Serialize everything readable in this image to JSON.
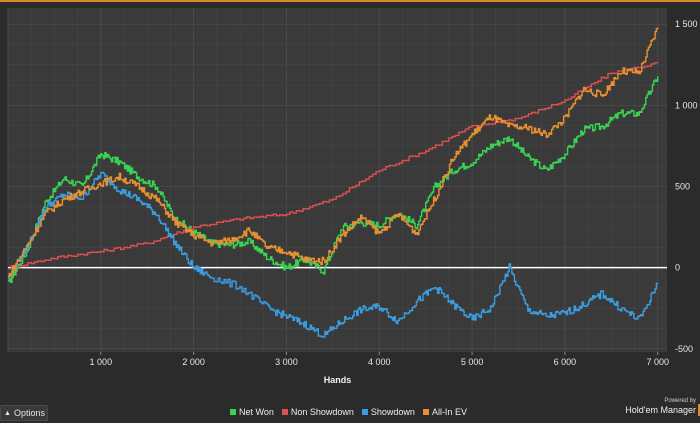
{
  "chart_data": {
    "type": "line",
    "xlabel": "Hands",
    "ylabel": "",
    "xlim": [
      0,
      7100
    ],
    "ylim": [
      -520,
      1600
    ],
    "x_ticks": [
      {
        "value": 1000,
        "label": "1 000"
      },
      {
        "value": 2000,
        "label": "2 000"
      },
      {
        "value": 3000,
        "label": "3 000"
      },
      {
        "value": 4000,
        "label": "4 000"
      },
      {
        "value": 5000,
        "label": "5 000"
      },
      {
        "value": 6000,
        "label": "6 000"
      },
      {
        "value": 7000,
        "label": "7 000"
      }
    ],
    "y_ticks": [
      {
        "value": 1500,
        "label": "1 500"
      },
      {
        "value": 1000,
        "label": "1 000"
      },
      {
        "value": 500,
        "label": "500"
      },
      {
        "value": 0,
        "label": "0"
      },
      {
        "value": -500,
        "label": "-500"
      }
    ],
    "grid": true,
    "legend_position": "bottom",
    "series": [
      {
        "name": "Net Won",
        "color": "#39d353",
        "points": [
          [
            0,
            -100
          ],
          [
            200,
            100
          ],
          [
            400,
            400
          ],
          [
            600,
            550
          ],
          [
            800,
            500
          ],
          [
            1000,
            700
          ],
          [
            1200,
            650
          ],
          [
            1400,
            560
          ],
          [
            1600,
            500
          ],
          [
            1800,
            300
          ],
          [
            2000,
            220
          ],
          [
            2200,
            150
          ],
          [
            2400,
            140
          ],
          [
            2600,
            160
          ],
          [
            2800,
            60
          ],
          [
            3000,
            0
          ],
          [
            3200,
            50
          ],
          [
            3400,
            -20
          ],
          [
            3600,
            250
          ],
          [
            3800,
            280
          ],
          [
            4000,
            260
          ],
          [
            4200,
            340
          ],
          [
            4400,
            260
          ],
          [
            4600,
            500
          ],
          [
            4800,
            600
          ],
          [
            5000,
            650
          ],
          [
            5200,
            750
          ],
          [
            5400,
            800
          ],
          [
            5600,
            680
          ],
          [
            5800,
            600
          ],
          [
            6000,
            700
          ],
          [
            6200,
            850
          ],
          [
            6400,
            870
          ],
          [
            6600,
            950
          ],
          [
            6800,
            950
          ],
          [
            7000,
            1180
          ]
        ]
      },
      {
        "name": "Non Showdown",
        "color": "#e05050",
        "points": [
          [
            0,
            0
          ],
          [
            500,
            60
          ],
          [
            1000,
            100
          ],
          [
            1500,
            150
          ],
          [
            2000,
            250
          ],
          [
            2500,
            300
          ],
          [
            3000,
            330
          ],
          [
            3500,
            420
          ],
          [
            4000,
            600
          ],
          [
            4500,
            720
          ],
          [
            5000,
            870
          ],
          [
            5500,
            920
          ],
          [
            6000,
            1030
          ],
          [
            6500,
            1200
          ],
          [
            7000,
            1260
          ]
        ]
      },
      {
        "name": "Showdown",
        "color": "#3a9de0",
        "points": [
          [
            0,
            -60
          ],
          [
            200,
            120
          ],
          [
            400,
            370
          ],
          [
            600,
            450
          ],
          [
            800,
            430
          ],
          [
            1000,
            580
          ],
          [
            1200,
            480
          ],
          [
            1400,
            420
          ],
          [
            1600,
            330
          ],
          [
            1800,
            150
          ],
          [
            2000,
            0
          ],
          [
            2200,
            -60
          ],
          [
            2500,
            -120
          ],
          [
            2800,
            -250
          ],
          [
            3000,
            -300
          ],
          [
            3200,
            -350
          ],
          [
            3400,
            -420
          ],
          [
            3600,
            -330
          ],
          [
            3800,
            -260
          ],
          [
            4000,
            -240
          ],
          [
            4200,
            -330
          ],
          [
            4400,
            -210
          ],
          [
            4600,
            -120
          ],
          [
            4800,
            -230
          ],
          [
            5000,
            -320
          ],
          [
            5200,
            -250
          ],
          [
            5400,
            0
          ],
          [
            5600,
            -260
          ],
          [
            5800,
            -300
          ],
          [
            6000,
            -280
          ],
          [
            6200,
            -230
          ],
          [
            6400,
            -160
          ],
          [
            6600,
            -250
          ],
          [
            6800,
            -320
          ],
          [
            7000,
            -100
          ]
        ]
      },
      {
        "name": "All-In EV",
        "color": "#e8902f",
        "points": [
          [
            0,
            -60
          ],
          [
            200,
            130
          ],
          [
            400,
            330
          ],
          [
            600,
            420
          ],
          [
            800,
            470
          ],
          [
            1000,
            520
          ],
          [
            1200,
            560
          ],
          [
            1400,
            500
          ],
          [
            1600,
            420
          ],
          [
            1800,
            280
          ],
          [
            2000,
            200
          ],
          [
            2200,
            150
          ],
          [
            2400,
            170
          ],
          [
            2600,
            230
          ],
          [
            2800,
            120
          ],
          [
            3000,
            100
          ],
          [
            3200,
            50
          ],
          [
            3400,
            40
          ],
          [
            3600,
            200
          ],
          [
            3800,
            310
          ],
          [
            4000,
            210
          ],
          [
            4200,
            330
          ],
          [
            4400,
            210
          ],
          [
            4600,
            430
          ],
          [
            4800,
            680
          ],
          [
            5000,
            820
          ],
          [
            5200,
            930
          ],
          [
            5400,
            870
          ],
          [
            5600,
            860
          ],
          [
            5800,
            820
          ],
          [
            6000,
            920
          ],
          [
            6200,
            1100
          ],
          [
            6400,
            1060
          ],
          [
            6600,
            1210
          ],
          [
            6800,
            1200
          ],
          [
            7000,
            1480
          ]
        ]
      }
    ]
  },
  "ui": {
    "options_label": "Options",
    "brand_top": "Powered by",
    "brand_name": "Hold'em Manager",
    "accent": "#d98a2b",
    "plot_background": "#3a3a3a",
    "grid_color": "#4d4d4d",
    "zero_line_color": "#ffffff"
  }
}
